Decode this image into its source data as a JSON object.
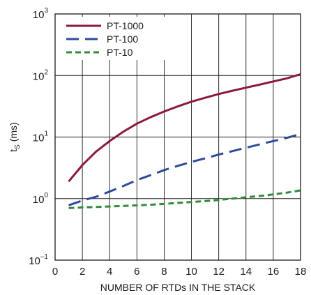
{
  "chart_data": {
    "type": "line",
    "title": "",
    "xlabel": "NUMBER OF RTDs IN THE STACK",
    "ylabel": {
      "base": "t",
      "sub": "S",
      "unit": " (ms)"
    },
    "xlim": [
      0,
      18
    ],
    "ylim": [
      0.1,
      1000
    ],
    "yscale": "log",
    "grid": true,
    "legend_position": "top-left",
    "x_ticks": [
      0,
      2,
      4,
      6,
      8,
      10,
      12,
      14,
      16,
      18
    ],
    "y_ticks": [
      {
        "value": 1000,
        "base": "10",
        "exp": "3"
      },
      {
        "value": 100,
        "base": "10",
        "exp": "2"
      },
      {
        "value": 10,
        "base": "10",
        "exp": "1"
      },
      {
        "value": 1,
        "base": "10",
        "exp": "0"
      },
      {
        "value": 0.1,
        "base": "10",
        "exp": "–1"
      }
    ],
    "x": [
      1,
      2,
      3,
      4,
      5,
      6,
      7,
      8,
      9,
      10,
      11,
      12,
      13,
      14,
      15,
      16,
      17,
      18
    ],
    "series": [
      {
        "name": "PT-1000",
        "color": "#8b1a3a",
        "style": "solid",
        "values": [
          1.9,
          3.5,
          5.8,
          8.6,
          12.2,
          16.5,
          21,
          26,
          31.5,
          37.5,
          43.5,
          50,
          56.5,
          63.5,
          71,
          80,
          90,
          105
        ]
      },
      {
        "name": "PT-100",
        "color": "#2e4b9b",
        "style": "dash",
        "values": [
          0.78,
          0.93,
          1.07,
          1.3,
          1.6,
          2.0,
          2.4,
          2.9,
          3.4,
          3.95,
          4.5,
          5.2,
          5.9,
          6.7,
          7.6,
          8.6,
          9.7,
          11.2
        ]
      },
      {
        "name": "PT-10",
        "color": "#2f8a3a",
        "style": "short-dash",
        "values": [
          0.7,
          0.72,
          0.73,
          0.745,
          0.76,
          0.775,
          0.795,
          0.82,
          0.85,
          0.88,
          0.91,
          0.95,
          1.0,
          1.05,
          1.1,
          1.17,
          1.25,
          1.36
        ]
      }
    ]
  }
}
